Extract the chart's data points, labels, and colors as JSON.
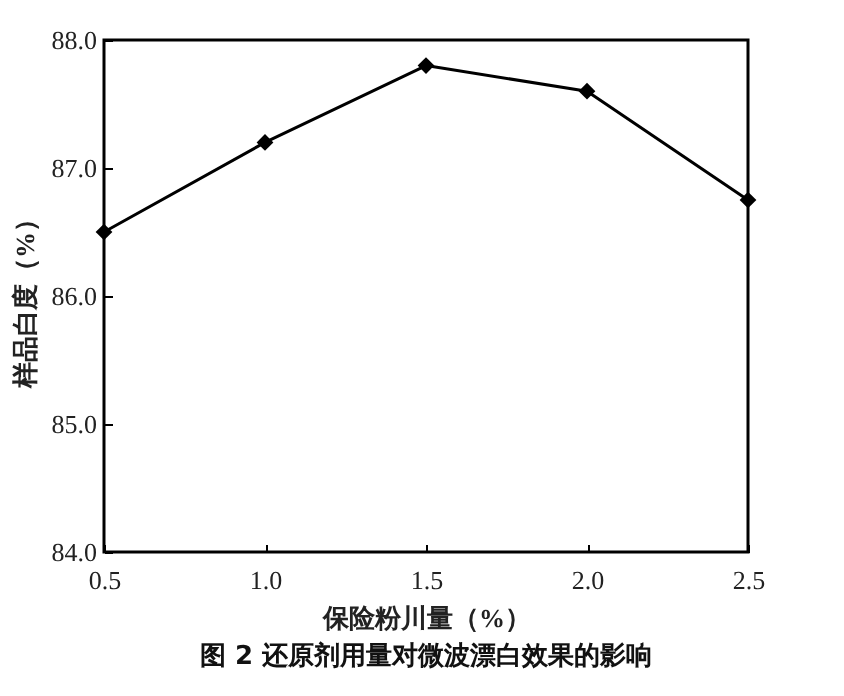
{
  "chart_data": {
    "type": "line",
    "title": "图 2  还原剂用量对微波漂白效果的影响",
    "xlabel": "保险粉川量（%）",
    "ylabel": "样品白度（%）",
    "x": [
      0.5,
      1.0,
      1.5,
      2.0,
      2.5
    ],
    "series": [
      {
        "color": "#000000",
        "values": [
          86.5,
          87.2,
          87.8,
          87.6,
          86.75
        ]
      }
    ],
    "xlim": [
      0.5,
      2.5
    ],
    "ylim": [
      84.0,
      88.0
    ],
    "xticks": [
      {
        "value": 0.5,
        "label": "0.5"
      },
      {
        "value": 1.0,
        "label": "1.0"
      },
      {
        "value": 1.5,
        "label": "1.5"
      },
      {
        "value": 2.0,
        "label": "2.0"
      },
      {
        "value": 2.5,
        "label": "2.5"
      }
    ],
    "yticks": [
      {
        "value": 84,
        "label": "84.0"
      },
      {
        "value": 85,
        "label": "85.0"
      },
      {
        "value": 86,
        "label": "86.0"
      },
      {
        "value": 87,
        "label": "87.0"
      },
      {
        "value": 88,
        "label": "88.0"
      }
    ],
    "marker": "diamond",
    "line_style": "solid",
    "grid": false
  }
}
